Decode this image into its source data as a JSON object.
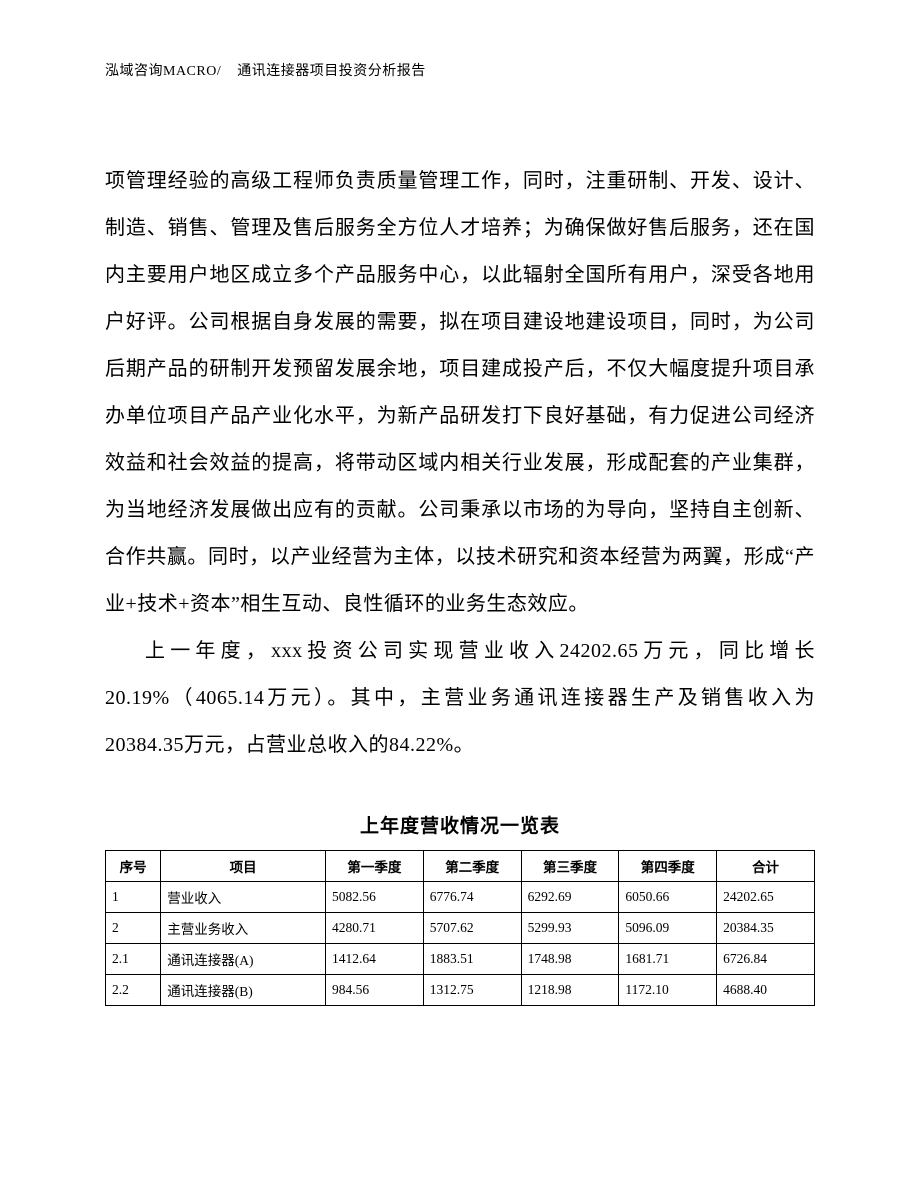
{
  "header": {
    "left": "泓域咨询MACRO/",
    "right": "通讯连接器项目投资分析报告"
  },
  "body": {
    "para1": "项管理经验的高级工程师负责质量管理工作，同时，注重研制、开发、设计、制造、销售、管理及售后服务全方位人才培养；为确保做好售后服务，还在国内主要用户地区成立多个产品服务中心，以此辐射全国所有用户，深受各地用户好评。公司根据自身发展的需要，拟在项目建设地建设项目，同时，为公司后期产品的研制开发预留发展余地，项目建成投产后，不仅大幅度提升项目承办单位项目产品产业化水平，为新产品研发打下良好基础，有力促进公司经济效益和社会效益的提高，将带动区域内相关行业发展，形成配套的产业集群，为当地经济发展做出应有的贡献。公司秉承以市场的为导向，坚持自主创新、合作共赢。同时，以产业经营为主体，以技术研究和资本经营为两翼，形成“产业+技术+资本”相生互动、良性循环的业务生态效应。",
    "para2": "上一年度，xxx投资公司实现营业收入24202.65万元，同比增长20.19%（4065.14万元）。其中，主营业务通讯连接器生产及销售收入为20384.35万元，占营业总收入的84.22%。"
  },
  "table": {
    "title": "上年度营收情况一览表",
    "columns": [
      "序号",
      "项目",
      "第一季度",
      "第二季度",
      "第三季度",
      "第四季度",
      "合计"
    ],
    "rows": [
      [
        "1",
        "营业收入",
        "5082.56",
        "6776.74",
        "6292.69",
        "6050.66",
        "24202.65"
      ],
      [
        "2",
        "主营业务收入",
        "4280.71",
        "5707.62",
        "5299.93",
        "5096.09",
        "20384.35"
      ],
      [
        "2.1",
        "通讯连接器(A)",
        "1412.64",
        "1883.51",
        "1748.98",
        "1681.71",
        "6726.84"
      ],
      [
        "2.2",
        "通讯连接器(B)",
        "984.56",
        "1312.75",
        "1218.98",
        "1172.10",
        "4688.40"
      ]
    ]
  }
}
